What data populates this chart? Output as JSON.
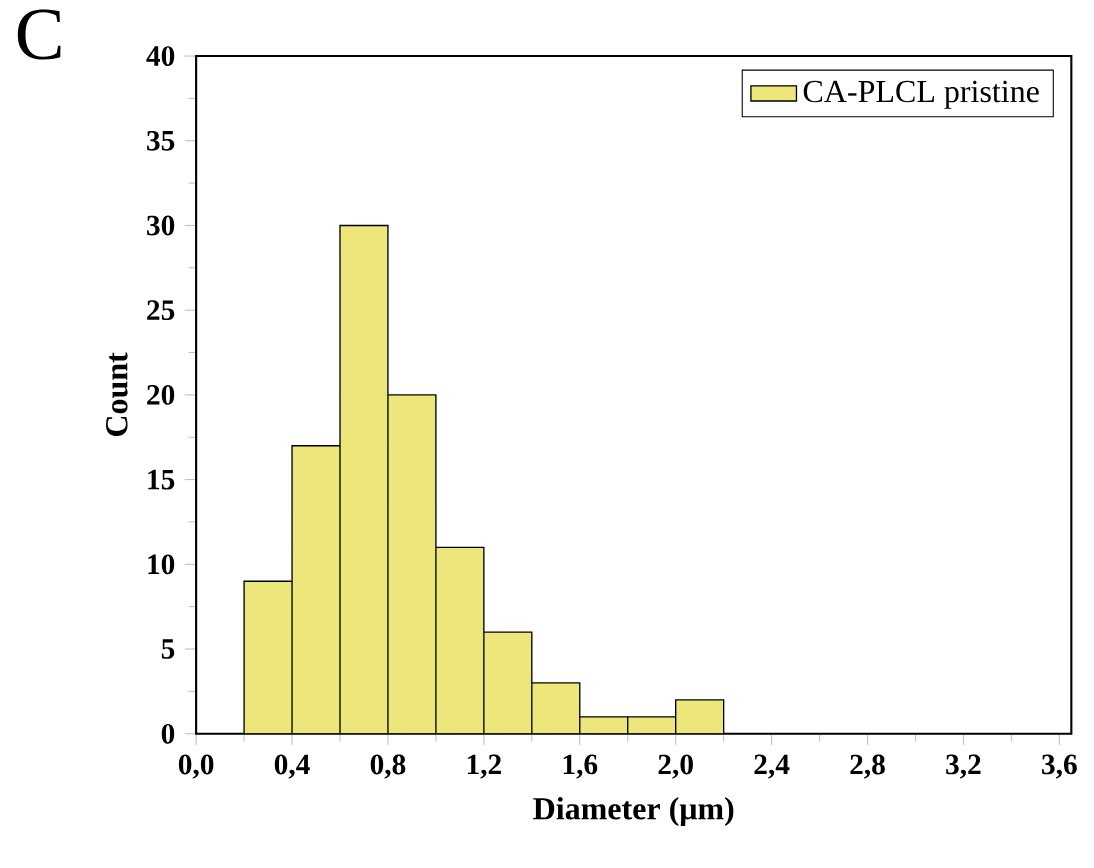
{
  "chart_data": {
    "type": "histogram",
    "xlabel": "Diameter (μm)",
    "ylabel": "Count",
    "annotations": [
      "C"
    ],
    "bins": [
      0.2,
      0.4,
      0.6,
      0.8,
      1.0,
      1.2,
      1.4,
      1.6,
      1.8,
      2.0,
      2.2
    ],
    "series": [
      {
        "name": "CA-PLCL pristine",
        "color": "#ede67a",
        "values": [
          9,
          17,
          30,
          20,
          11,
          6,
          3,
          1,
          1,
          2
        ]
      }
    ],
    "xlim": [
      0,
      3.65
    ],
    "xticks": [
      {
        "value": 0,
        "label": "0,0"
      },
      {
        "value": 0.4,
        "label": "0,4"
      },
      {
        "value": 0.8,
        "label": "0,8"
      },
      {
        "value": 1.2,
        "label": "1,2"
      },
      {
        "value": 1.6,
        "label": "1,6"
      },
      {
        "value": 2.0,
        "label": "2,0"
      },
      {
        "value": 2.4,
        "label": "2,4"
      },
      {
        "value": 2.8,
        "label": "2,8"
      },
      {
        "value": 3.2,
        "label": "3,2"
      },
      {
        "value": 3.6,
        "label": "3,6"
      }
    ],
    "ylim": [
      0,
      40
    ],
    "yticks": [
      0,
      5,
      10,
      15,
      20,
      25,
      30,
      35,
      40
    ],
    "legend": "top right",
    "grid": false
  }
}
